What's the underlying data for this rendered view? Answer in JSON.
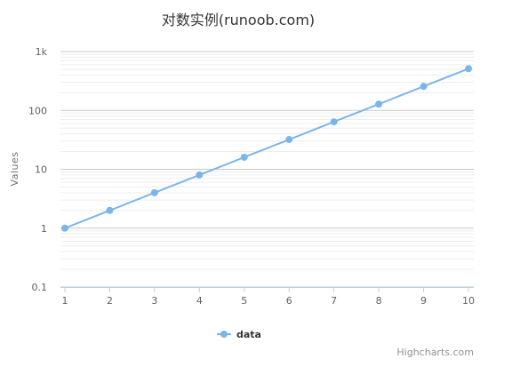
{
  "chart_data": {
    "type": "line",
    "title": "对数实例(runoob.com)",
    "ylabel": "Values",
    "yscale": "log",
    "ylim": [
      0.1,
      1000
    ],
    "y_tick_labels": [
      "0.1",
      "1",
      "10",
      "100",
      "1k"
    ],
    "x": [
      1,
      2,
      3,
      4,
      5,
      6,
      7,
      8,
      9,
      10
    ],
    "series": [
      {
        "name": "data",
        "color": "#7cb5ec",
        "values": [
          1,
          2,
          4,
          8,
          16,
          32,
          64,
          128,
          256,
          512
        ]
      }
    ],
    "grid": true,
    "minor_grid": true,
    "legend": "bottom-center",
    "credits": "Highcharts.com"
  }
}
